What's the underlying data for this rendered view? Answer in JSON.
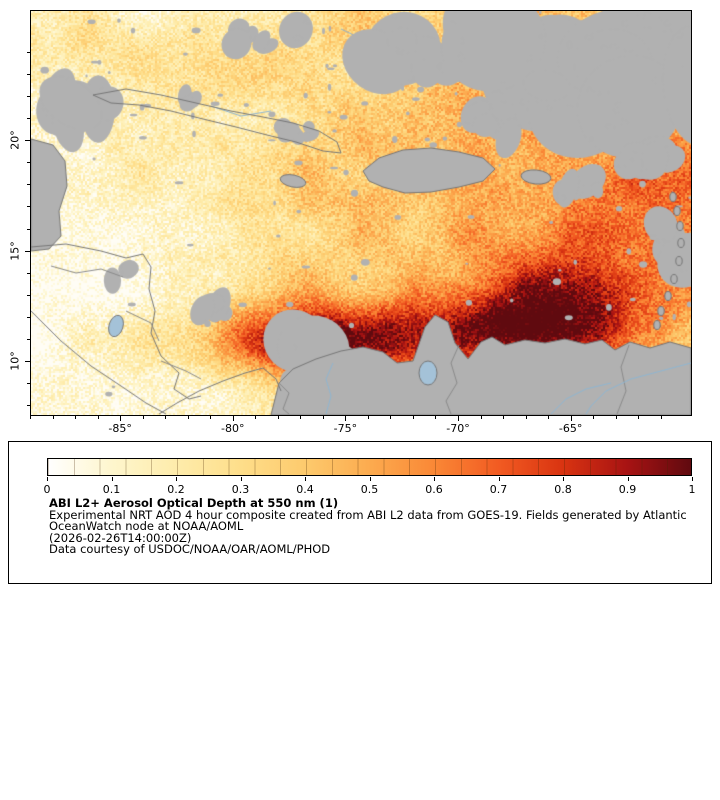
{
  "figure": {
    "lon_range": [
      -89.0,
      -59.7
    ],
    "lat_range": [
      7.6,
      25.9
    ],
    "x_axis": {
      "ticks": [
        {
          "label": "-85°",
          "lon": -85
        },
        {
          "label": "-80°",
          "lon": -80
        },
        {
          "label": "-75°",
          "lon": -75
        },
        {
          "label": "-70°",
          "lon": -70
        },
        {
          "label": "-65°",
          "lon": -65
        }
      ]
    },
    "y_axis": {
      "ticks": [
        {
          "label": "20°",
          "lat": 20
        },
        {
          "label": "15°",
          "lat": 15
        },
        {
          "label": "10°",
          "lat": 10
        }
      ]
    }
  },
  "legend": {
    "colorbar": {
      "min": 0,
      "max": 1,
      "tick_labels": [
        "0",
        "0.1",
        "0.2",
        "0.3",
        "0.4",
        "0.5",
        "0.6",
        "0.7",
        "0.8",
        "0.9",
        "1"
      ],
      "segments": 25,
      "colors": [
        {
          "t": 0.0,
          "c": "#ffffff"
        },
        {
          "t": 0.04,
          "c": "#fffbea"
        },
        {
          "t": 0.1,
          "c": "#fef6cd"
        },
        {
          "t": 0.2,
          "c": "#feecab"
        },
        {
          "t": 0.3,
          "c": "#fede8a"
        },
        {
          "t": 0.4,
          "c": "#fdca6d"
        },
        {
          "t": 0.5,
          "c": "#fcab4f"
        },
        {
          "t": 0.6,
          "c": "#fa8836"
        },
        {
          "t": 0.7,
          "c": "#f25b22"
        },
        {
          "t": 0.8,
          "c": "#d93411"
        },
        {
          "t": 0.9,
          "c": "#a81313"
        },
        {
          "t": 1.0,
          "c": "#600a0f"
        }
      ]
    },
    "title": "ABI L2+ Aerosol Optical Depth at 550 nm (1)",
    "description_line1": "Experimental NRT AOD 4 hour composite created from ABI L2 data from GOES-19. Fields generated by Atlantic",
    "description_line2": "OceanWatch node at NOAA/AOML",
    "timestamp": "(2026-02-26T14:00:00Z)",
    "credit": "Data courtesy of USDOC/NOAA/OAR/AOML/PHOD"
  },
  "map_colors": {
    "no_data_gray": "#b1b1b1",
    "coast": "#767676",
    "border": "#8a8a8a",
    "river": "#8fb6d2",
    "lake": "#a4c2d8"
  }
}
